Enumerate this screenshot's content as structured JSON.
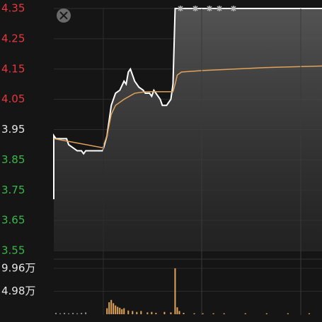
{
  "chart_data": {
    "type": "line",
    "xlim": [
      0,
      126
    ],
    "ylim": [
      3.55,
      4.35
    ],
    "yticks": [
      4.35,
      4.25,
      4.15,
      4.05,
      3.95,
      3.85,
      3.75,
      3.65,
      3.55
    ],
    "ytick_colors": [
      "#e8383d",
      "#e8383d",
      "#e8383d",
      "#e8383d",
      "#e6e6e6",
      "#3cb84a",
      "#3cb84a",
      "#3cb84a",
      "#3cb84a"
    ],
    "grid": true,
    "series": [
      {
        "color": "#ffffff",
        "x": [
          0,
          0,
          1,
          6,
          7,
          9,
          11,
          13,
          14,
          15,
          23,
          25,
          27,
          29,
          31,
          33,
          34,
          35,
          36,
          38,
          40,
          42,
          43,
          45,
          46,
          47,
          48,
          50,
          51,
          53,
          55,
          56,
          57,
          126
        ],
        "values": [
          3.72,
          3.93,
          3.92,
          3.92,
          3.9,
          3.89,
          3.88,
          3.88,
          3.87,
          3.88,
          3.88,
          3.93,
          4.03,
          4.07,
          4.08,
          4.11,
          4.1,
          4.14,
          4.15,
          4.11,
          4.09,
          4.08,
          4.07,
          4.07,
          4.06,
          4.08,
          4.07,
          4.05,
          4.03,
          4.03,
          4.05,
          4.1,
          4.35,
          4.35
        ]
      },
      {
        "color": "#e0a35a",
        "x": [
          0,
          23,
          25,
          27,
          29,
          33,
          38,
          43,
          56,
          57,
          58,
          60,
          70,
          85,
          100,
          126
        ],
        "values": [
          3.92,
          3.89,
          3.93,
          4.0,
          4.03,
          4.05,
          4.07,
          4.075,
          4.075,
          4.1,
          4.13,
          4.14,
          4.145,
          4.15,
          4.155,
          4.16
        ]
      }
    ],
    "volume": {
      "ylim": [
        0,
        9.96
      ],
      "yticks": [
        {
          "value": 9.96,
          "label": "9.96万"
        },
        {
          "value": 4.98,
          "label": "4.98万"
        }
      ],
      "x": [
        1,
        3,
        5,
        7,
        9,
        11,
        13,
        15,
        25,
        26,
        27,
        28,
        29,
        30,
        31,
        32,
        33,
        35,
        37,
        39,
        41,
        44,
        46,
        48,
        52,
        55,
        57,
        58,
        59,
        61,
        66,
        70,
        75,
        80,
        90,
        100,
        110,
        120
      ],
      "values": [
        0.3,
        0.2,
        0.3,
        0.2,
        0.3,
        0.2,
        0.3,
        0.4,
        1.3,
        2.6,
        3.1,
        2.4,
        1.9,
        1.6,
        1.4,
        1.1,
        1.3,
        0.8,
        0.7,
        0.5,
        0.7,
        0.4,
        0.5,
        0.3,
        0.5,
        0.4,
        9.96,
        1.5,
        0.7,
        0.3,
        0.2,
        0.2,
        0.2,
        0.2,
        0.2,
        0.2,
        0.2,
        0.2
      ],
      "colors": [
        "#8a8a8a",
        "#8a8a8a",
        "#8a8a8a",
        "#8a8a8a",
        "#8a8a8a",
        "#8a8a8a",
        "#8a8a8a",
        "#8a8a8a",
        "#e0a35a",
        "#e0a35a",
        "#e0a35a",
        "#e0a35a",
        "#e0a35a",
        "#e0a35a",
        "#e0a35a",
        "#e0a35a",
        "#e0a35a",
        "#e0a35a",
        "#e0a35a",
        "#e0a35a",
        "#e0a35a",
        "#e0a35a",
        "#e0a35a",
        "#e0a35a",
        "#e0a35a",
        "#e0a35a",
        "#e0a35a",
        "#e0a35a",
        "#e0a35a",
        "#e0a35a",
        "#e0a35a",
        "#e0a35a",
        "#e0a35a",
        "#e0a35a",
        "#e0a35a",
        "#e0a35a",
        "#e0a35a",
        "#e0a35a"
      ]
    }
  }
}
